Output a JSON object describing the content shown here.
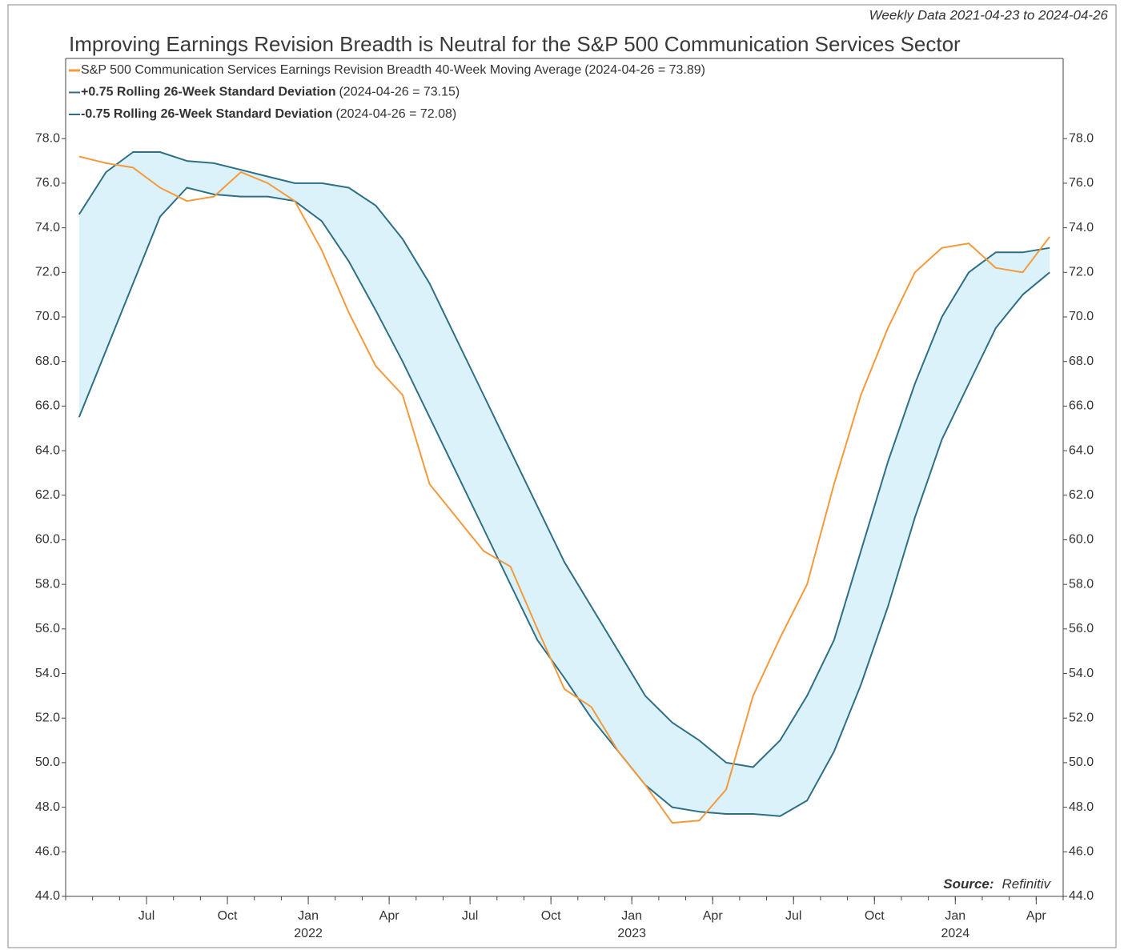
{
  "chart_data": {
    "type": "line",
    "title": "Improving Earnings Revision Breadth is Neutral for the S&P 500 Communication Services Sector",
    "subtitle": "Weekly Data 2021-04-23 to 2024-04-26",
    "source_label": "Source:",
    "source": "Refinitiv",
    "x": [
      "2021-04",
      "2021-05",
      "2021-06",
      "2021-07",
      "2021-08",
      "2021-09",
      "2021-10",
      "2021-11",
      "2021-12",
      "2022-01",
      "2022-02",
      "2022-03",
      "2022-04",
      "2022-05",
      "2022-06",
      "2022-07",
      "2022-08",
      "2022-09",
      "2022-10",
      "2022-11",
      "2022-12",
      "2023-01",
      "2023-02",
      "2023-03",
      "2023-04",
      "2023-05",
      "2023-06",
      "2023-07",
      "2023-08",
      "2023-09",
      "2023-10",
      "2023-11",
      "2023-12",
      "2024-01",
      "2024-02",
      "2024-03",
      "2024-04"
    ],
    "series": [
      {
        "name": "S&P 500 Communication Services Earnings Revision Breadth 40-Week Moving Average",
        "note": "(2024-04-26 = 73.89)",
        "legend_bold": false,
        "color": "#f39a3c",
        "values": [
          77.2,
          76.9,
          76.7,
          75.8,
          75.2,
          75.4,
          76.5,
          76.0,
          75.2,
          73.0,
          70.2,
          67.8,
          66.5,
          62.5,
          61.0,
          59.5,
          58.8,
          56.0,
          53.3,
          52.5,
          50.5,
          49.0,
          47.3,
          47.4,
          48.8,
          53.0,
          55.6,
          58.0,
          62.5,
          66.5,
          69.5,
          72.0,
          73.1,
          73.3,
          72.2,
          72.0,
          73.6
        ]
      },
      {
        "name": "+0.75 Rolling 26-Week Standard Deviation",
        "note": "(2024-04-26 = 73.15)",
        "legend_bold": true,
        "color": "#2f6f86",
        "values": [
          74.6,
          76.5,
          77.4,
          77.4,
          77.0,
          76.9,
          76.6,
          76.3,
          76.0,
          76.0,
          75.8,
          75.0,
          73.5,
          71.5,
          69.0,
          66.5,
          64.0,
          61.5,
          59.0,
          57.0,
          55.0,
          53.0,
          51.8,
          51.0,
          50.0,
          49.8,
          51.0,
          53.0,
          55.5,
          59.5,
          63.5,
          67.0,
          70.0,
          72.0,
          72.9,
          72.9,
          73.1
        ]
      },
      {
        "name": "-0.75 Rolling 26-Week Standard Deviation",
        "note": "(2024-04-26 = 72.08)",
        "legend_bold": true,
        "color": "#2f6f86",
        "values": [
          65.5,
          68.5,
          71.5,
          74.5,
          75.8,
          75.5,
          75.4,
          75.4,
          75.2,
          74.3,
          72.5,
          70.3,
          68.0,
          65.5,
          63.0,
          60.5,
          58.0,
          55.5,
          53.8,
          52.0,
          50.5,
          49.0,
          48.0,
          47.8,
          47.7,
          47.7,
          47.6,
          48.3,
          50.5,
          53.5,
          57.0,
          61.0,
          64.5,
          67.0,
          69.5,
          71.0,
          72.0
        ]
      }
    ],
    "band": {
      "between": [
        1,
        2
      ],
      "color": "#dcf2fb"
    },
    "xlim": [
      "2021-04",
      "2024-05"
    ],
    "xticks": [
      {
        "value": "2021-07",
        "label": "Jul"
      },
      {
        "value": "2021-10",
        "label": "Oct"
      },
      {
        "value": "2022-01",
        "label": "Jan",
        "year": "2022"
      },
      {
        "value": "2022-04",
        "label": "Apr"
      },
      {
        "value": "2022-07",
        "label": "Jul"
      },
      {
        "value": "2022-10",
        "label": "Oct"
      },
      {
        "value": "2023-01",
        "label": "Jan",
        "year": "2023"
      },
      {
        "value": "2023-04",
        "label": "Apr"
      },
      {
        "value": "2023-07",
        "label": "Jul"
      },
      {
        "value": "2023-10",
        "label": "Oct"
      },
      {
        "value": "2024-01",
        "label": "Jan",
        "year": "2024"
      },
      {
        "value": "2024-04",
        "label": "Apr"
      }
    ],
    "ylim": [
      44,
      81.6
    ],
    "yticks": [
      {
        "value": 44,
        "label": "44.0"
      },
      {
        "value": 46,
        "label": "46.0"
      },
      {
        "value": 48,
        "label": "48.0"
      },
      {
        "value": 50,
        "label": "50.0"
      },
      {
        "value": 52,
        "label": "52.0"
      },
      {
        "value": 54,
        "label": "54.0"
      },
      {
        "value": 56,
        "label": "56.0"
      },
      {
        "value": 58,
        "label": "58.0"
      },
      {
        "value": 60,
        "label": "60.0"
      },
      {
        "value": 62,
        "label": "62.0"
      },
      {
        "value": 64,
        "label": "64.0"
      },
      {
        "value": 66,
        "label": "66.0"
      },
      {
        "value": 68,
        "label": "68.0"
      },
      {
        "value": 70,
        "label": "70.0"
      },
      {
        "value": 72,
        "label": "72.0"
      },
      {
        "value": 74,
        "label": "74.0"
      },
      {
        "value": 76,
        "label": "76.0"
      },
      {
        "value": 78,
        "label": "78.0"
      }
    ],
    "right_axis_labels": true
  }
}
